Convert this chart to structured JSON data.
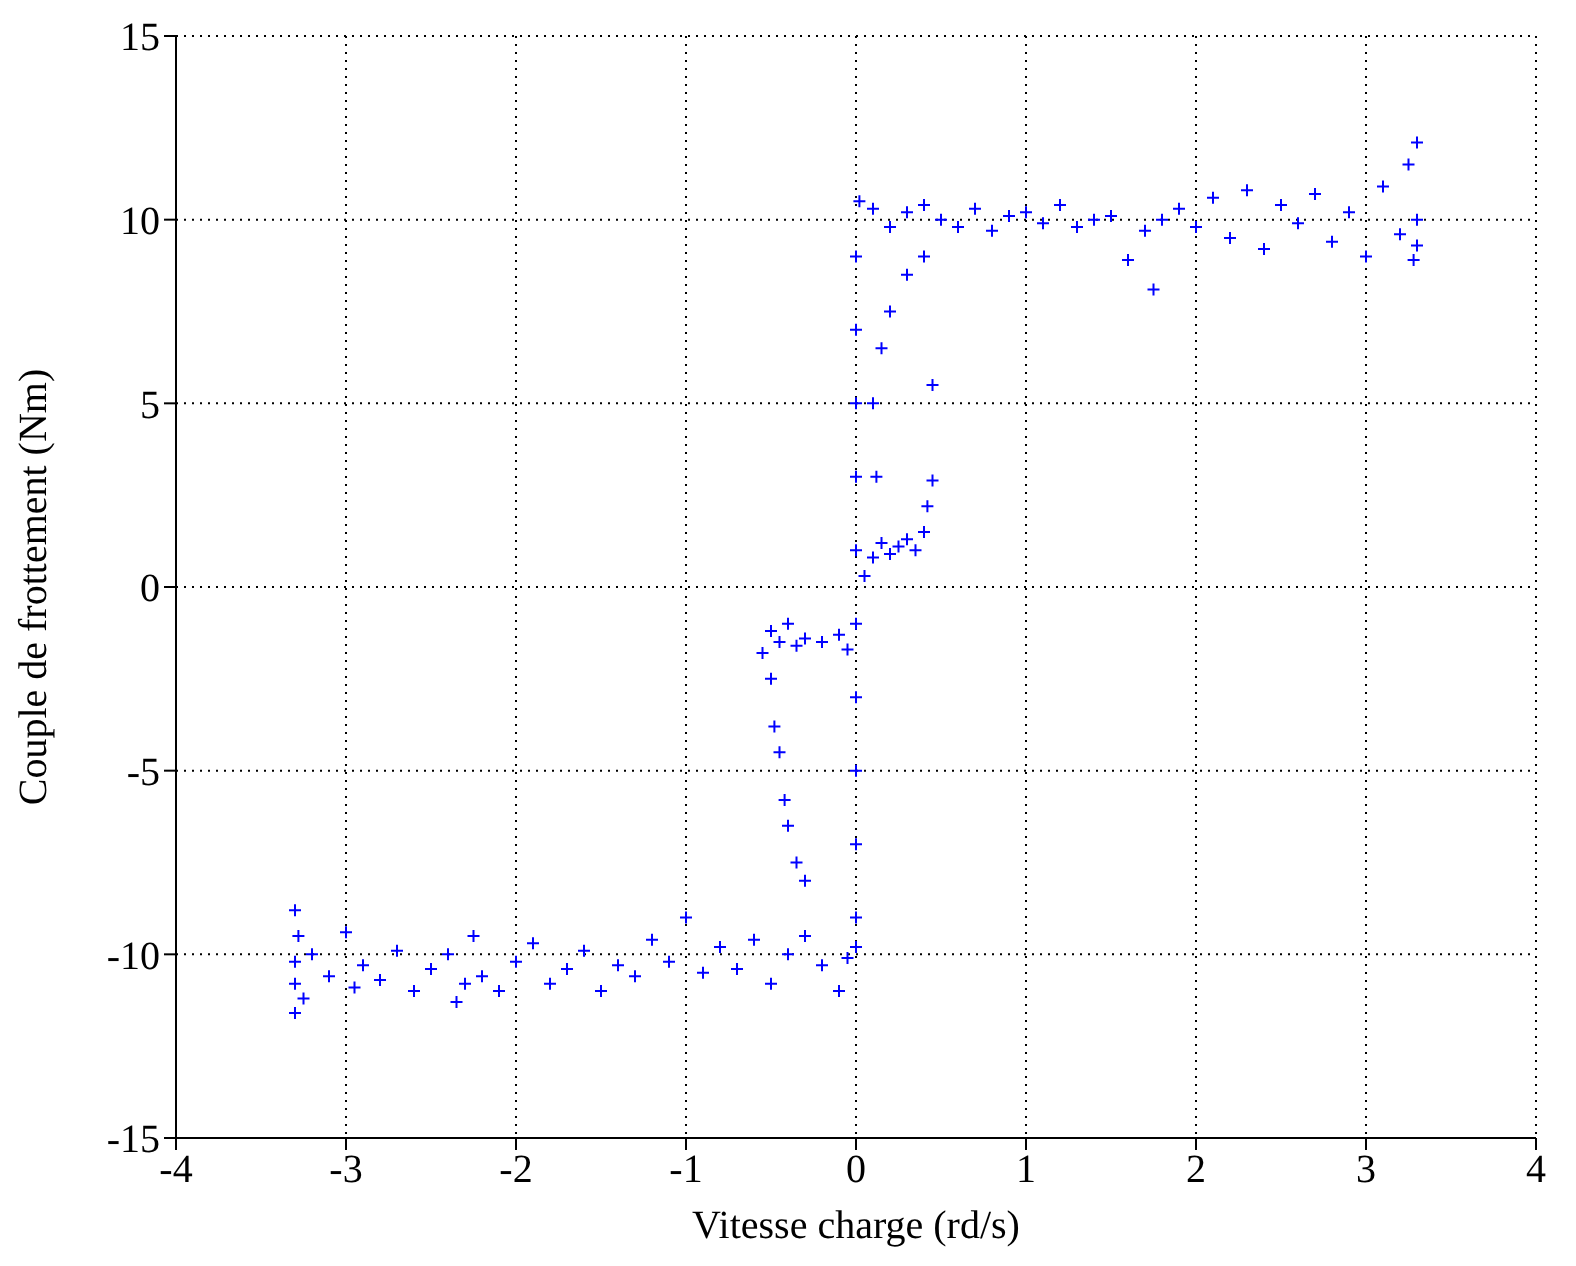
{
  "chart_data": {
    "type": "scatter",
    "xlabel": "Vitesse charge (rd/s)",
    "ylabel": "Couple de frottement (Nm)",
    "xlim": [
      -4,
      4
    ],
    "xticks": [
      -4,
      -3,
      -2,
      -1,
      0,
      1,
      2,
      3,
      4
    ],
    "ylim": [
      -15,
      15
    ],
    "yticks": [
      -15,
      -10,
      -5,
      0,
      5,
      10,
      15
    ],
    "grid": true,
    "marker": "cross",
    "legend": false,
    "series": [
      {
        "color": "#0000ff",
        "x": [
          -3.3,
          -3.3,
          -3.3,
          -3.28,
          -3.3,
          -3.25,
          -3.2,
          -3.1,
          -3.0,
          -2.95,
          -2.9,
          -2.8,
          -2.7,
          -2.6,
          -2.5,
          -2.4,
          -2.35,
          -2.3,
          -2.25,
          -2.2,
          -2.1,
          -2.0,
          -1.9,
          -1.8,
          -1.7,
          -1.6,
          -1.5,
          -1.4,
          -1.3,
          -1.2,
          -1.1,
          -1.0,
          -0.9,
          -0.8,
          -0.7,
          -0.6,
          -0.5,
          -0.4,
          -0.3,
          -0.2,
          -0.1,
          -0.05,
          0.0,
          0.0,
          0.0,
          0.0,
          0.0,
          0.0,
          0.0,
          0.0,
          0.0,
          0.0,
          0.0,
          -0.5,
          -0.45,
          -0.4,
          -0.35,
          -0.3,
          -0.2,
          -0.1,
          -0.05,
          -0.5,
          -0.48,
          -0.45,
          -0.42,
          -0.4,
          -0.35,
          -0.3,
          -0.55,
          0.05,
          0.1,
          0.15,
          0.2,
          0.25,
          0.3,
          0.35,
          0.4,
          0.42,
          0.45,
          0.1,
          0.15,
          0.2,
          0.3,
          0.4,
          0.45,
          0.12,
          0.02,
          0.1,
          0.2,
          0.3,
          0.4,
          0.5,
          0.6,
          0.7,
          0.8,
          0.9,
          1.0,
          1.1,
          1.2,
          1.3,
          1.4,
          1.5,
          1.6,
          1.7,
          1.75,
          1.8,
          1.9,
          2.0,
          2.1,
          2.2,
          2.3,
          2.4,
          2.5,
          2.6,
          2.7,
          2.8,
          2.9,
          3.0,
          3.1,
          3.2,
          3.25,
          3.28,
          3.3,
          3.3,
          3.3
        ],
        "values": [
          -10.2,
          -8.8,
          -11.6,
          -9.5,
          -10.8,
          -11.2,
          -10.0,
          -10.6,
          -9.4,
          -10.9,
          -10.3,
          -10.7,
          -9.9,
          -11.0,
          -10.4,
          -10.0,
          -11.3,
          -10.8,
          -9.5,
          -10.6,
          -11.0,
          -10.2,
          -9.7,
          -10.8,
          -10.4,
          -9.9,
          -11.0,
          -10.3,
          -10.6,
          -9.6,
          -10.2,
          -9.0,
          -10.5,
          -9.8,
          -10.4,
          -9.6,
          -10.8,
          -10.0,
          -9.5,
          -10.3,
          -11.0,
          -10.1,
          -9.8,
          -9,
          -7,
          -5,
          -3,
          -1,
          1,
          3,
          5,
          7,
          9,
          -1.2,
          -1.5,
          -1.0,
          -1.6,
          -1.4,
          -1.5,
          -1.3,
          -1.7,
          -2.5,
          -3.8,
          -4.5,
          -5.8,
          -6.5,
          -7.5,
          -8.0,
          -1.8,
          0.3,
          0.8,
          1.2,
          0.9,
          1.1,
          1.3,
          1.0,
          1.5,
          2.2,
          2.9,
          5.0,
          6.5,
          7.5,
          8.5,
          9.0,
          5.5,
          3.0,
          10.5,
          10.3,
          9.8,
          10.2,
          10.4,
          10.0,
          9.8,
          10.3,
          9.7,
          10.1,
          10.2,
          9.9,
          10.4,
          9.8,
          10.0,
          10.1,
          8.9,
          9.7,
          8.1,
          10.0,
          10.3,
          9.8,
          10.6,
          9.5,
          10.8,
          9.2,
          10.4,
          9.9,
          10.7,
          9.4,
          10.2,
          9.0,
          10.9,
          9.6,
          11.5,
          8.9,
          12.1,
          10.0,
          9.3
        ]
      }
    ]
  }
}
